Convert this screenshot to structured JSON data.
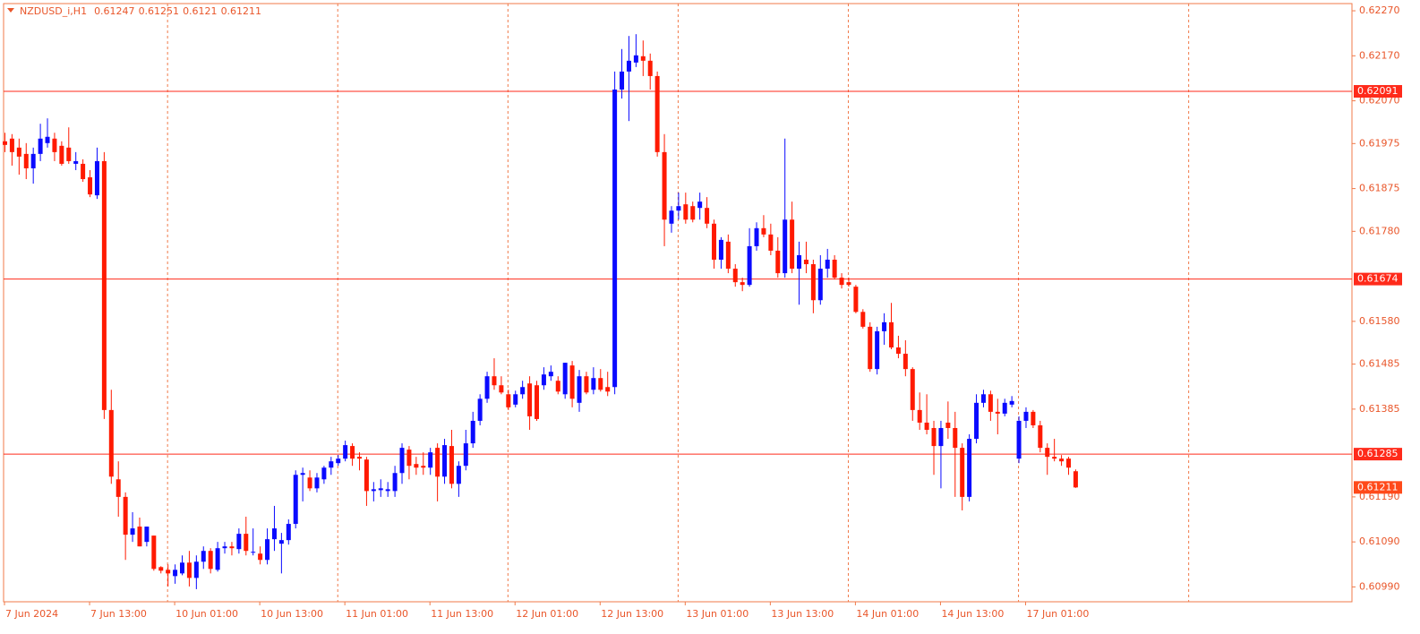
{
  "chart_data": {
    "type": "candlestick",
    "symbol": "NZDUSD_i,H1",
    "up_color": "#0a0aff",
    "down_color": "#ff1a00",
    "ylim": [
      0.60957,
      0.62286
    ],
    "yticks": [
      {
        "value": 0.6227,
        "label": "0.62270"
      },
      {
        "value": 0.6217,
        "label": "0.62170"
      },
      {
        "value": 0.6207,
        "label": "0.62070"
      },
      0.61975,
      0.61875,
      {
        "value": 0.6178,
        "label": "0.61780"
      },
      {
        "value": 0.6158,
        "label": "0.61580"
      },
      0.61485,
      0.61385,
      {
        "value": 0.6119,
        "label": "0.61190"
      },
      {
        "value": 0.6109,
        "label": "0.61090"
      },
      {
        "value": 0.6099,
        "label": "0.60990"
      }
    ],
    "xticks": [
      {
        "value": 0,
        "label": "7 Jun 2024"
      },
      {
        "value": 12,
        "label": "7 Jun 13:00"
      },
      {
        "value": 24,
        "label": "10 Jun 01:00"
      },
      {
        "value": 36,
        "label": "10 Jun 13:00"
      },
      {
        "value": 48,
        "label": "11 Jun 01:00"
      },
      {
        "value": 60,
        "label": "11 Jun 13:00"
      },
      {
        "value": 72,
        "label": "12 Jun 01:00"
      },
      {
        "value": 84,
        "label": "12 Jun 13:00"
      },
      {
        "value": 96,
        "label": "13 Jun 01:00"
      },
      {
        "value": 108,
        "label": "13 Jun 13:00"
      },
      {
        "value": 120,
        "label": "14 Jun 01:00"
      },
      {
        "value": 132,
        "label": "14 Jun 13:00"
      },
      {
        "value": 144,
        "label": "17 Jun 01:00"
      }
    ],
    "levels": [
      0.62091,
      0.61674,
      0.61285
    ],
    "open": [
      0.6198,
      0.61986,
      0.61966,
      0.61952,
      0.6192,
      0.61952,
      0.61976,
      0.61986,
      0.6197,
      0.61966,
      0.6193,
      0.6193,
      0.619,
      0.6186,
      0.61936,
      0.61383,
      0.61229,
      0.6119,
      0.61106,
      0.61124,
      0.6109,
      0.61104,
      0.61034,
      0.61028,
      0.61014,
      0.6102,
      0.61044,
      0.6101,
      0.61046,
      0.6107,
      0.61028,
      0.61076,
      0.6108,
      0.61074,
      0.61108,
      0.61066,
      0.61064,
      0.6105,
      0.61096,
      0.61086,
      0.61094,
      0.6113,
      0.61239,
      0.61233,
      0.61209,
      0.61229,
      0.61255,
      0.61265,
      0.61275,
      0.61303,
      0.61279,
      0.61273,
      0.61203,
      0.61205,
      0.61203,
      0.61203,
      0.61243,
      0.61295,
      0.61263,
      0.61259,
      0.61255,
      0.61299,
      0.61235,
      0.61303,
      0.61219,
      0.61259,
      0.61309,
      0.61359,
      0.61408,
      0.61458,
      0.61438,
      0.61418,
      0.61395,
      0.61418,
      0.61442,
      0.61438,
      0.61438,
      0.61458,
      0.61448,
      0.61418,
      0.61482,
      0.61399,
      0.61458,
      0.61428,
      0.61454,
      0.61434,
      0.61434,
      0.62095,
      0.62135,
      0.62155,
      0.62169,
      0.62159,
      0.62125,
      0.61956,
      0.61797,
      0.61826,
      0.6184,
      0.61836,
      0.61832,
      0.61832,
      0.61797,
      0.61717,
      0.61757,
      0.61697,
      0.61667,
      0.61661,
      0.61747,
      0.61787,
      0.61773,
      0.61737,
      0.61687,
      0.61806,
      0.61697,
      0.61717,
      0.61707,
      0.61627,
      0.61697,
      0.61717,
      0.61677,
      0.61667,
      0.61657,
      0.61601,
      0.61568,
      0.61474,
      0.61558,
      0.61578,
      0.61522,
      0.61508,
      0.61474,
      0.61383,
      0.61355,
      0.61343,
      0.61303,
      0.61355,
      0.61343,
      0.61299,
      0.6119,
      0.61319,
      0.61399,
      0.61418,
      0.61379,
      0.61375,
      0.61395,
      0.61275,
      0.61359,
      0.61379,
      0.61349,
      0.61299,
      0.61279,
      0.61275,
      0.61275,
      0.61247
    ],
    "high": [
      0.61999,
      0.61996,
      0.61986,
      0.61976,
      0.61966,
      0.62019,
      0.62031,
      0.61999,
      0.6198,
      0.62011,
      0.61956,
      0.6194,
      0.61916,
      0.61966,
      0.61956,
      0.61428,
      0.61269,
      0.612,
      0.61156,
      0.61144,
      0.61124,
      0.61104,
      0.61036,
      0.6104,
      0.6104,
      0.6106,
      0.6107,
      0.6106,
      0.6108,
      0.61076,
      0.6109,
      0.6109,
      0.6109,
      0.6112,
      0.61146,
      0.6112,
      0.6108,
      0.6112,
      0.6117,
      0.6111,
      0.6114,
      0.61249,
      0.61255,
      0.61249,
      0.61243,
      0.61259,
      0.61279,
      0.61283,
      0.61315,
      0.61309,
      0.61289,
      0.61279,
      0.61223,
      0.61229,
      0.61223,
      0.61259,
      0.61309,
      0.61303,
      0.61279,
      0.61289,
      0.61299,
      0.61309,
      0.61319,
      0.61339,
      0.61269,
      0.61339,
      0.61379,
      0.61418,
      0.61468,
      0.61498,
      0.61458,
      0.61428,
      0.61426,
      0.61448,
      0.61458,
      0.61448,
      0.61478,
      0.61482,
      0.61458,
      0.61488,
      0.61492,
      0.61472,
      0.61468,
      0.61478,
      0.61474,
      0.61468,
      0.62135,
      0.62185,
      0.62214,
      0.62218,
      0.62204,
      0.62175,
      0.62135,
      0.61996,
      0.61836,
      0.61866,
      0.61866,
      0.61846,
      0.61866,
      0.61856,
      0.61806,
      0.61767,
      0.61773,
      0.61707,
      0.61677,
      0.61787,
      0.618,
      0.61816,
      0.61797,
      0.61767,
      0.61986,
      0.61846,
      0.61757,
      0.61757,
      0.61717,
      0.61727,
      0.61741,
      0.61727,
      0.61687,
      0.61677,
      0.61661,
      0.61607,
      0.61578,
      0.61568,
      0.61598,
      0.61621,
      0.61548,
      0.61538,
      0.61478,
      0.61422,
      0.61418,
      0.61359,
      0.61359,
      0.61402,
      0.61379,
      0.61309,
      0.61329,
      0.61418,
      0.61428,
      0.61426,
      0.61408,
      0.61408,
      0.61414,
      0.61369,
      0.61389,
      0.61383,
      0.61359,
      0.61309,
      0.61319,
      0.61283,
      0.61279,
      0.61251
    ],
    "low": [
      0.61956,
      0.61926,
      0.61906,
      0.61896,
      0.61886,
      0.61936,
      0.61966,
      0.61936,
      0.61926,
      0.6193,
      0.61916,
      0.6189,
      0.61856,
      0.61852,
      0.61363,
      0.61219,
      0.61146,
      0.6105,
      0.6109,
      0.6108,
      0.6108,
      0.61026,
      0.6102,
      0.60991,
      0.60997,
      0.61016,
      0.60991,
      0.60985,
      0.6103,
      0.6102,
      0.61024,
      0.61064,
      0.6106,
      0.61064,
      0.6106,
      0.6106,
      0.6104,
      0.6104,
      0.6107,
      0.6102,
      0.61084,
      0.6112,
      0.6118,
      0.61203,
      0.612,
      0.61219,
      0.61239,
      0.61259,
      0.61269,
      0.61259,
      0.61249,
      0.6117,
      0.6118,
      0.6119,
      0.6119,
      0.6119,
      0.61219,
      0.61229,
      0.61239,
      0.61239,
      0.61239,
      0.6118,
      0.61219,
      0.61209,
      0.6119,
      0.61249,
      0.61299,
      0.61349,
      0.61399,
      0.61428,
      0.61418,
      0.61383,
      0.61389,
      0.61408,
      0.61339,
      0.61359,
      0.61428,
      0.61448,
      0.61418,
      0.61408,
      0.61389,
      0.61379,
      0.61418,
      0.61418,
      0.61424,
      0.61414,
      0.61418,
      0.62075,
      0.62025,
      0.62145,
      0.62125,
      0.62095,
      0.61946,
      0.61747,
      0.61777,
      0.61806,
      0.61797,
      0.618,
      0.61806,
      0.61787,
      0.61697,
      0.61697,
      0.61687,
      0.61657,
      0.61647,
      0.61657,
      0.61737,
      0.61767,
      0.61727,
      0.61677,
      0.61677,
      0.61687,
      0.61617,
      0.61687,
      0.61598,
      0.61617,
      0.61677,
      0.61673,
      0.61653,
      0.61657,
      0.61598,
      0.61564,
      0.61468,
      0.61462,
      0.61528,
      0.61518,
      0.61498,
      0.61458,
      0.61359,
      0.61339,
      0.61329,
      0.61239,
      0.61209,
      0.61319,
      0.6119,
      0.6116,
      0.6118,
      0.61309,
      0.61389,
      0.61359,
      0.61329,
      0.61369,
      0.61389,
      0.61265,
      0.61343,
      0.61343,
      0.61289,
      0.61239,
      0.61269,
      0.61259,
      0.61239,
      0.6121
    ],
    "close": [
      0.61972,
      0.61956,
      0.61946,
      0.6192,
      0.61952,
      0.61986,
      0.6199,
      0.61956,
      0.6193,
      0.61936,
      0.61936,
      0.61896,
      0.61862,
      0.61936,
      0.61383,
      0.61235,
      0.6119,
      0.61106,
      0.6112,
      0.6108,
      0.61124,
      0.6103,
      0.61026,
      0.6102,
      0.61028,
      0.61044,
      0.6101,
      0.61046,
      0.6107,
      0.6103,
      0.61076,
      0.6108,
      0.61076,
      0.61108,
      0.6107,
      0.61068,
      0.6105,
      0.61096,
      0.6112,
      0.61094,
      0.6113,
      0.61239,
      0.61243,
      0.61209,
      0.61233,
      0.61255,
      0.61269,
      0.61275,
      0.61305,
      0.61275,
      0.61275,
      0.61203,
      0.61207,
      0.61209,
      0.61207,
      0.61243,
      0.61299,
      0.61259,
      0.61255,
      0.61255,
      0.61289,
      0.61235,
      0.61305,
      0.61219,
      0.61259,
      0.61309,
      0.61359,
      0.61408,
      0.61458,
      0.61438,
      0.61422,
      0.61389,
      0.61418,
      0.61434,
      0.61369,
      0.61363,
      0.61462,
      0.61468,
      0.61424,
      0.61488,
      0.61408,
      0.61458,
      0.61422,
      0.61454,
      0.61428,
      0.61424,
      0.62095,
      0.62135,
      0.62159,
      0.62171,
      0.62159,
      0.62125,
      0.61956,
      0.61806,
      0.61826,
      0.61836,
      0.61806,
      0.61806,
      0.61846,
      0.61797,
      0.61717,
      0.61761,
      0.61697,
      0.61667,
      0.61661,
      0.61747,
      0.61787,
      0.61773,
      0.61737,
      0.61687,
      0.61806,
      0.61697,
      0.61727,
      0.61707,
      0.61627,
      0.61697,
      0.61717,
      0.61677,
      0.61661,
      0.61661,
      0.61601,
      0.61568,
      0.61474,
      0.61558,
      0.61578,
      0.61522,
      0.61508,
      0.61474,
      0.61383,
      0.61355,
      0.61339,
      0.61303,
      0.61343,
      0.61343,
      0.61299,
      0.6119,
      0.61319,
      0.61399,
      0.61418,
      0.61379,
      0.61375,
      0.61399,
      0.61403,
      0.61359,
      0.61379,
      0.61349,
      0.61299,
      0.61279,
      0.61275,
      0.61269,
      0.61255,
      0.61211
    ]
  }
}
